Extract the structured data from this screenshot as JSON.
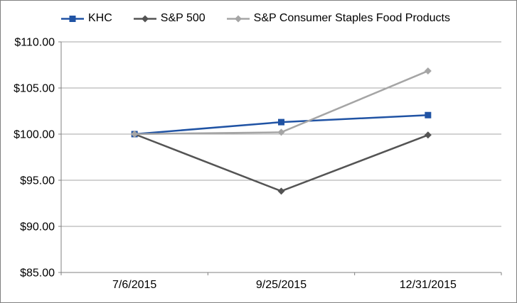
{
  "chart_data": {
    "type": "line",
    "title": "",
    "categories": [
      "7/6/2015",
      "9/25/2015",
      "12/31/2015"
    ],
    "series": [
      {
        "name": "KHC",
        "color": "#2053A4",
        "marker": "square",
        "values": [
          100.0,
          101.3,
          102.06
        ]
      },
      {
        "name": "S&P 500",
        "color": "#545454",
        "marker": "diamond",
        "values": [
          100.0,
          93.82,
          99.9
        ]
      },
      {
        "name": "S&P Consumer Staples Food Products",
        "color": "#A5A5A5",
        "marker": "diamond",
        "values": [
          100.0,
          100.2,
          106.85
        ]
      }
    ],
    "y_axis": {
      "min": 85,
      "max": 110,
      "step": 5,
      "tick_labels": [
        "$85.00",
        "$90.00",
        "$95.00",
        "$100.00",
        "$105.00",
        "$110.00"
      ]
    },
    "x_axis": {
      "tick_labels": [
        "7/6/2015",
        "9/25/2015",
        "12/31/2015"
      ]
    },
    "legend_position": "top",
    "grid": true
  },
  "colors": {
    "background": "#FFFFFF",
    "border": "#808080",
    "axis_line": "#808080",
    "gridline": "#A6A6A6",
    "text": "#000000"
  }
}
